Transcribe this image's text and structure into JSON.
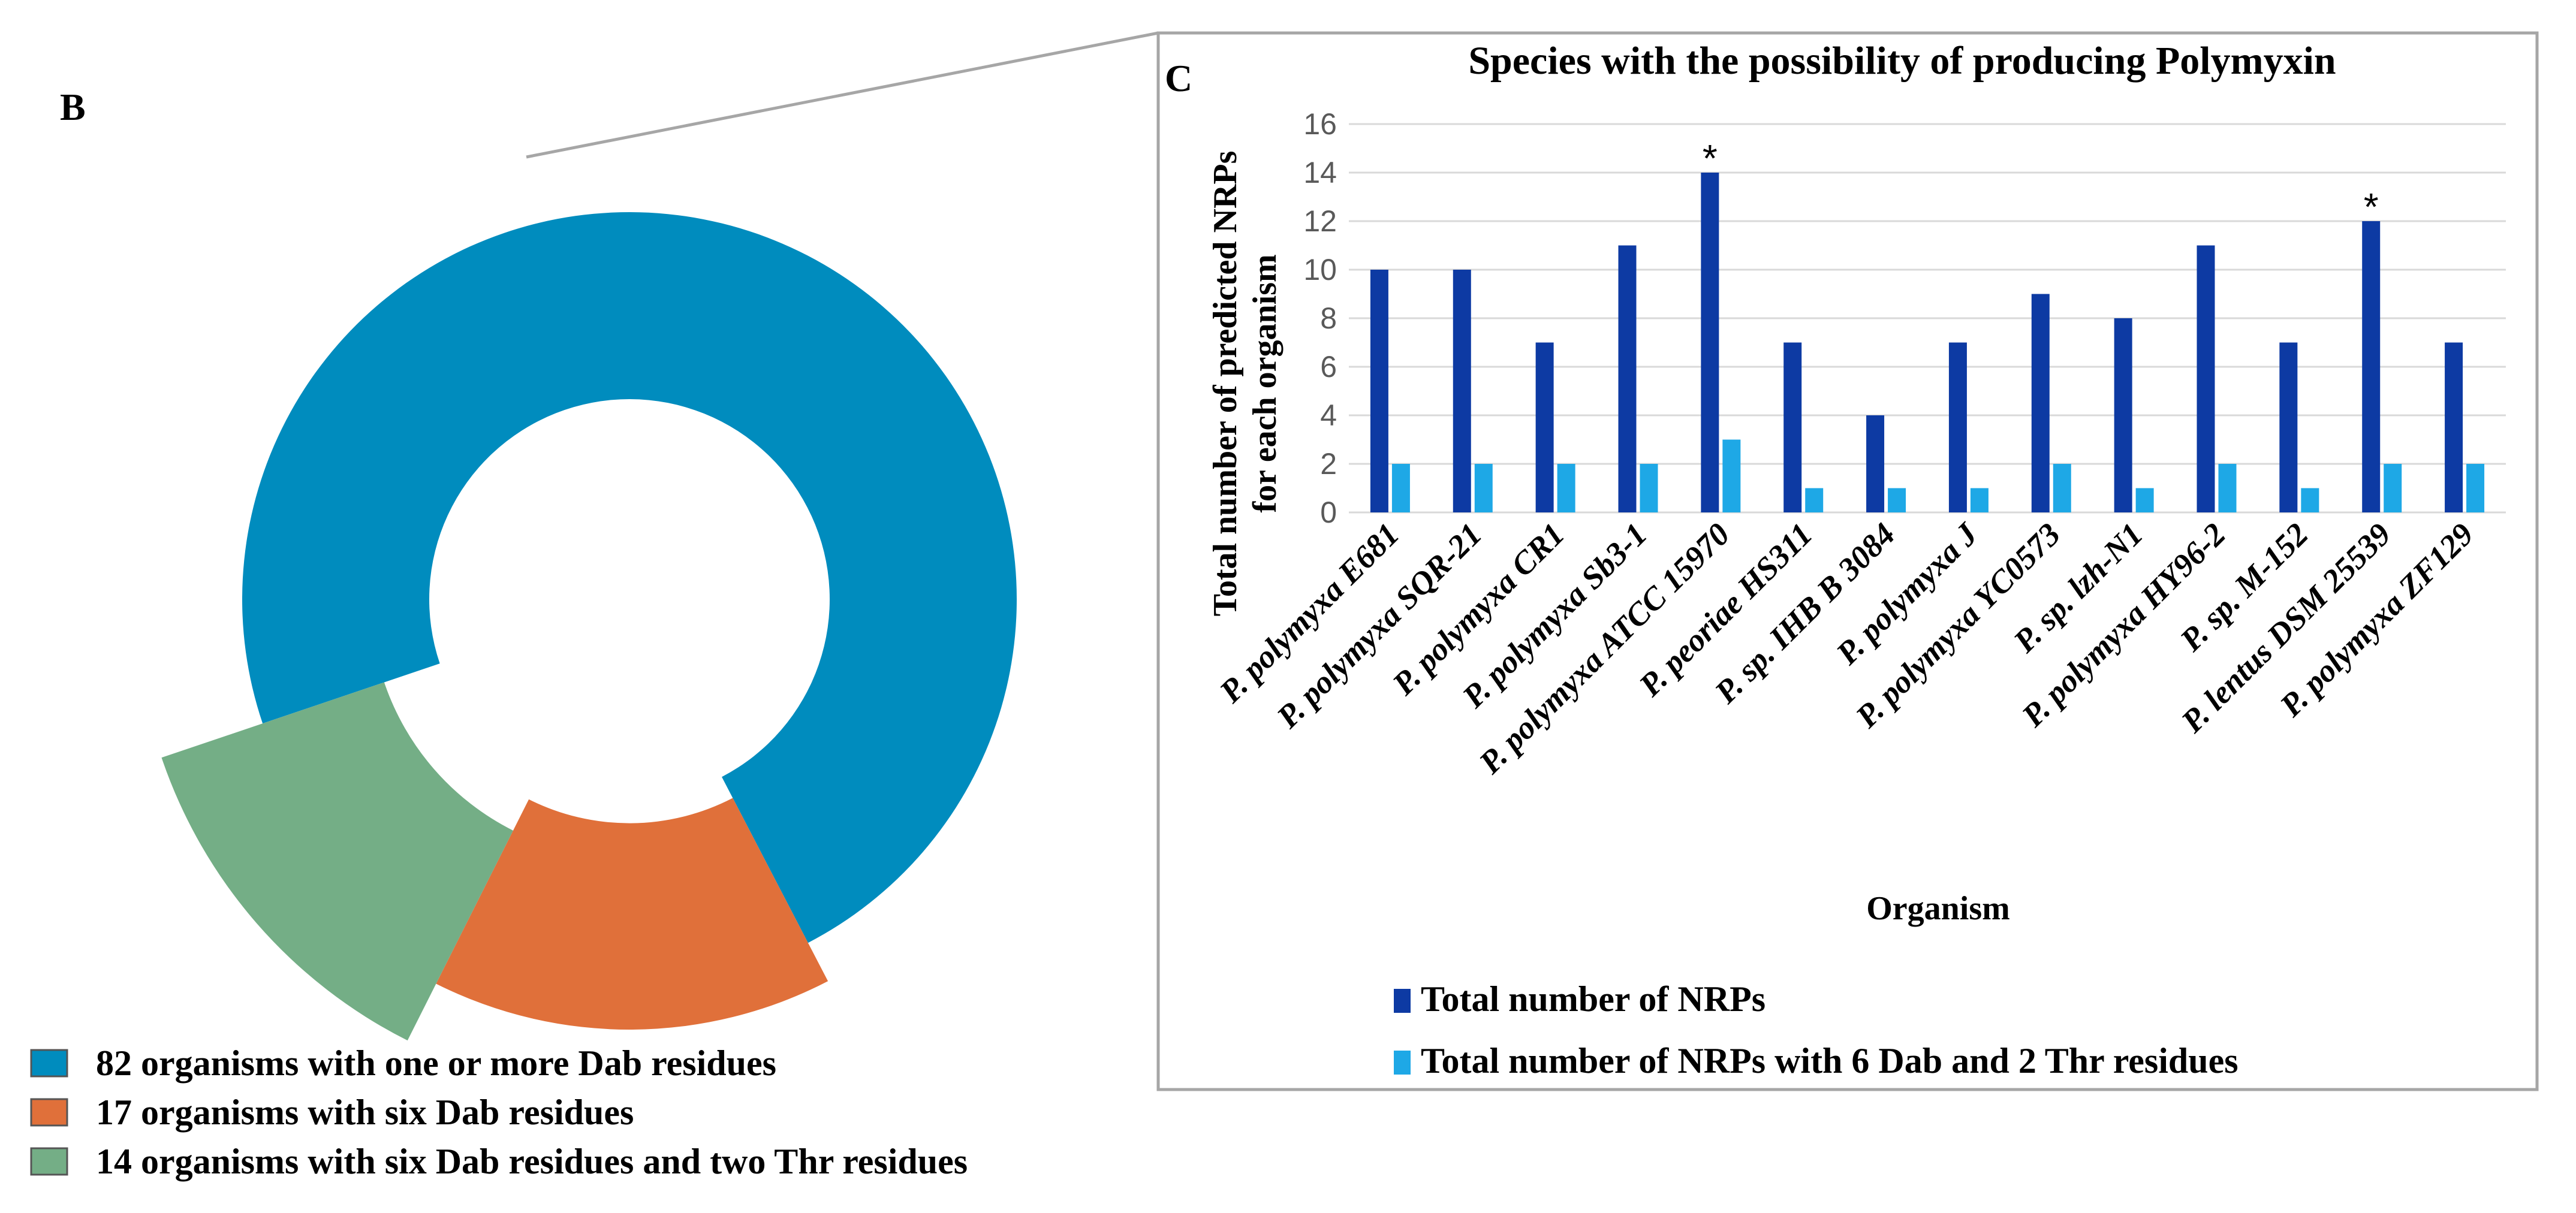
{
  "panel_b": {
    "label": "B",
    "legend": [
      {
        "label": "82 organisms with one or more Dab residues",
        "color": "#008CBE"
      },
      {
        "label": "17 organisms with six Dab residues",
        "color": "#E0703A"
      },
      {
        "label": "14 organisms with six Dab residues and two Thr residues",
        "color": "#74AE86"
      }
    ]
  },
  "panel_c": {
    "label": "C",
    "legend": [
      {
        "label": "Total number of NRPs",
        "color": "#0D3AA3"
      },
      {
        "label": "Total number of NRPs with 6 Dab and 2 Thr residues",
        "color": "#1EA8E6"
      }
    ]
  },
  "chart_data": [
    {
      "type": "pie",
      "style": "donut",
      "slices": [
        {
          "label": "82 organisms with one or more Dab residues",
          "value": 82
        },
        {
          "label": "17 organisms with six Dab residues",
          "value": 17
        },
        {
          "label": "14 organisms with six Dab residues and two Thr residues",
          "value": 14
        }
      ]
    },
    {
      "type": "bar",
      "title": "Species with the possibility of producing Polymyxin",
      "xlabel": "Organism",
      "ylabel_lines": [
        "Total number of predicted NRPs",
        "for each organism"
      ],
      "ylim": [
        0,
        16
      ],
      "yticks": [
        0,
        2,
        4,
        6,
        8,
        10,
        12,
        14,
        16
      ],
      "grid": true,
      "legend_position": "bottom",
      "categories": [
        "P. polymyxa E681",
        "P. polymyxa SQR-21",
        "P. polymyxa CR1",
        "P. polymyxa Sb3-1",
        "P. polymyxa ATCC 15970",
        "P. peoriae  HS311",
        "P. sp. IHB B 3084",
        "P. polymyxa J",
        "P. polymyxa YC0573",
        "P. sp. lzh-N1",
        "P. polymyxa HY96-2",
        "P. sp. M-152",
        "P. lentus  DSM 25539",
        "P. polymyxa ZF129"
      ],
      "series": [
        {
          "name": "Total number of NRPs",
          "color": "#0D3AA3",
          "values": [
            10,
            10,
            7,
            11,
            14,
            7,
            4,
            7,
            9,
            8,
            11,
            7,
            12,
            7
          ]
        },
        {
          "name": "Total number of NRPs with 6 Dab and 2 Thr residues",
          "color": "#1EA8E6",
          "values": [
            2,
            2,
            2,
            2,
            3,
            1,
            1,
            1,
            2,
            1,
            2,
            1,
            2,
            2
          ]
        }
      ],
      "annotations": [
        {
          "category": "P. polymyxa ATCC 15970",
          "text": "*"
        },
        {
          "category": "P. lentus  DSM 25539",
          "text": "*"
        }
      ]
    }
  ]
}
